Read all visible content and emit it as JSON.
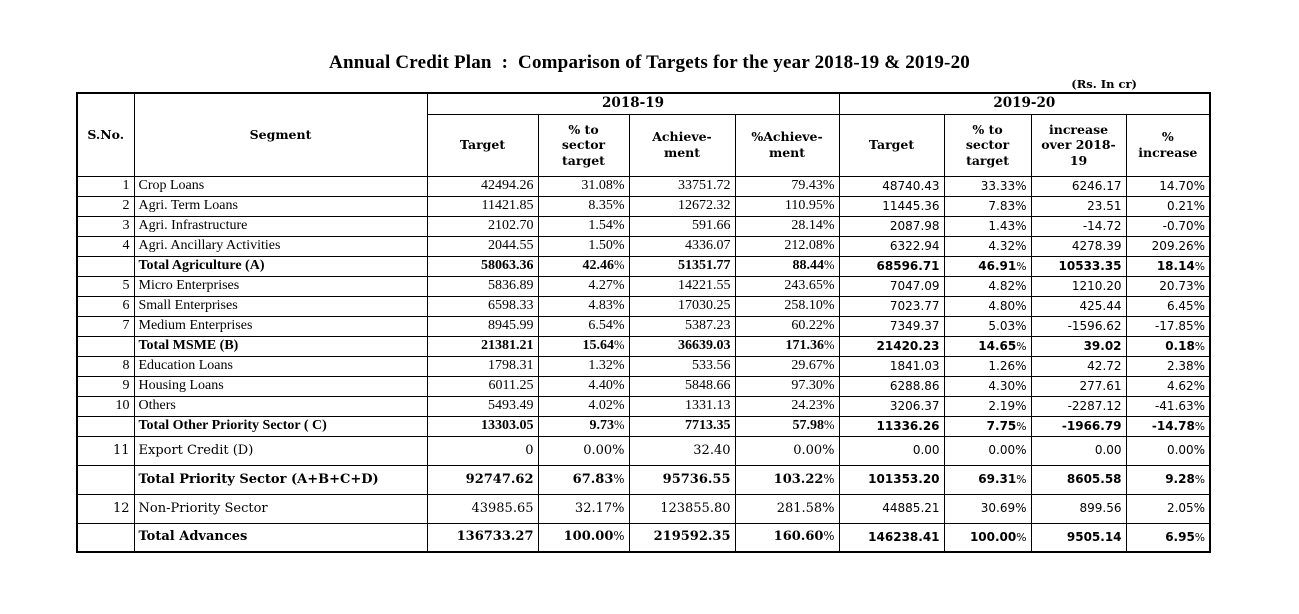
{
  "title": "Annual Credit Plan  :  Comparison of Targets for the year 2018-19 & 2019-20",
  "unit_note": "(Rs. In cr)",
  "table": {
    "year_groups": [
      "2018-19",
      "2019-20"
    ],
    "headers": {
      "sno": "S.No.",
      "segment": "Segment",
      "cols_2018_19": [
        "Target",
        "% to\nsector\ntarget",
        "Achieve-\nment",
        "%Achieve-\nment"
      ],
      "cols_2019_20": [
        "Target",
        "% to\nsector\ntarget",
        "increase\nover 2018-\n19",
        "%\nincrease"
      ]
    },
    "rows": [
      {
        "sno": "1",
        "segment": "Crop Loans",
        "font": "times",
        "bold": false,
        "tall": false,
        "values": [
          "42494.26",
          "31.08%",
          "33751.72",
          "79.43%",
          "48740.43",
          "33.33%",
          "6246.17",
          "14.70%"
        ]
      },
      {
        "sno": "2",
        "segment": "Agri. Term Loans",
        "font": "times",
        "bold": false,
        "tall": false,
        "values": [
          "11421.85",
          "8.35%",
          "12672.32",
          "110.95%",
          "11445.36",
          "7.83%",
          "23.51",
          "0.21%"
        ]
      },
      {
        "sno": "3",
        "segment": "Agri. Infrastructure",
        "font": "times",
        "bold": false,
        "tall": false,
        "values": [
          "2102.70",
          "1.54%",
          "591.66",
          "28.14%",
          "2087.98",
          "1.43%",
          "-14.72",
          "-0.70%"
        ]
      },
      {
        "sno": "4",
        "segment": "Agri. Ancillary Activities",
        "font": "times",
        "bold": false,
        "tall": false,
        "values": [
          "2044.55",
          "1.50%",
          "4336.07",
          "212.08%",
          "6322.94",
          "4.32%",
          "4278.39",
          "209.26%"
        ]
      },
      {
        "sno": "",
        "segment": "Total Agriculture (A)",
        "font": "times",
        "bold": true,
        "tall": false,
        "values": [
          "58063.36",
          "42.46%",
          "51351.77",
          "88.44%",
          "68596.71",
          "46.91%",
          "10533.35",
          "18.14%"
        ]
      },
      {
        "sno": "5",
        "segment": "Micro Enterprises",
        "font": "times",
        "bold": false,
        "tall": false,
        "values": [
          "5836.89",
          "4.27%",
          "14221.55",
          "243.65%",
          "7047.09",
          "4.82%",
          "1210.20",
          "20.73%"
        ]
      },
      {
        "sno": "6",
        "segment": "Small Enterprises",
        "font": "times",
        "bold": false,
        "tall": false,
        "values": [
          "6598.33",
          "4.83%",
          "17030.25",
          "258.10%",
          "7023.77",
          "4.80%",
          "425.44",
          "6.45%"
        ]
      },
      {
        "sno": "7",
        "segment": "Medium Enterprises",
        "font": "times",
        "bold": false,
        "tall": false,
        "values": [
          "8945.99",
          "6.54%",
          "5387.23",
          "60.22%",
          "7349.37",
          "5.03%",
          "-1596.62",
          "-17.85%"
        ]
      },
      {
        "sno": "",
        "segment": "Total MSME (B)",
        "font": "times",
        "bold": true,
        "tall": false,
        "values": [
          "21381.21",
          "15.64%",
          "36639.03",
          "171.36%",
          "21420.23",
          "14.65%",
          "39.02",
          "0.18%"
        ]
      },
      {
        "sno": "8",
        "segment": "Education Loans",
        "font": "times",
        "bold": false,
        "tall": false,
        "values": [
          "1798.31",
          "1.32%",
          "533.56",
          "29.67%",
          "1841.03",
          "1.26%",
          "42.72",
          "2.38%"
        ]
      },
      {
        "sno": "9",
        "segment": "Housing Loans",
        "font": "times",
        "bold": false,
        "tall": false,
        "values": [
          "6011.25",
          "4.40%",
          "5848.66",
          "97.30%",
          "6288.86",
          "4.30%",
          "277.61",
          "4.62%"
        ]
      },
      {
        "sno": "10",
        "segment": "Others",
        "font": "times",
        "bold": false,
        "tall": false,
        "values": [
          "5493.49",
          "4.02%",
          "1331.13",
          "24.23%",
          "3206.37",
          "2.19%",
          "-2287.12",
          "-41.63%"
        ]
      },
      {
        "sno": "",
        "segment": "Total Other Priority Sector ( C)",
        "font": "times",
        "bold": true,
        "tall": false,
        "values": [
          "13303.05",
          "9.73%",
          "7713.35",
          "57.98%",
          "11336.26",
          "7.75%",
          "-1966.79",
          "-14.78%"
        ]
      },
      {
        "sno": "11",
        "segment": "Export Credit (D)",
        "font": "book",
        "bold": false,
        "tall": true,
        "values": [
          "0",
          "0.00%",
          "32.40",
          "0.00%",
          "0.00",
          "0.00%",
          "0.00",
          "0.00%"
        ]
      },
      {
        "sno": "",
        "segment": "Total Priority Sector (A+B+C+D)",
        "font": "book",
        "bold": true,
        "tall": true,
        "values": [
          "92747.62",
          "67.83%",
          "95736.55",
          "103.22%",
          "101353.20",
          "69.31%",
          "8605.58",
          "9.28%"
        ]
      },
      {
        "sno": "12",
        "segment": "Non-Priority Sector",
        "font": "book",
        "bold": false,
        "tall": true,
        "values": [
          "43985.65",
          "32.17%",
          "123855.80",
          "281.58%",
          "44885.21",
          "30.69%",
          "899.56",
          "2.05%"
        ]
      },
      {
        "sno": "",
        "segment": "Total Advances",
        "font": "book",
        "bold": true,
        "tall": true,
        "values": [
          "136733.27",
          "100.00%",
          "219592.35",
          "160.60%",
          "146238.41",
          "100.00%",
          "9505.14",
          "6.95%"
        ]
      }
    ]
  }
}
